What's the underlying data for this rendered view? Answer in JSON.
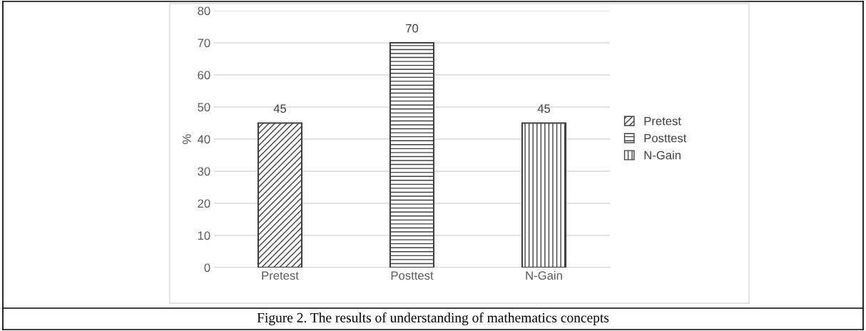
{
  "chart_data": {
    "type": "bar",
    "categories": [
      "Pretest",
      "Posttest",
      "N-Gain"
    ],
    "series": [
      {
        "name": "Pretest",
        "color": "#404040",
        "values": [
          45,
          null,
          null
        ]
      },
      {
        "name": "Posttest",
        "color": "#404040",
        "values": [
          null,
          70,
          null
        ]
      },
      {
        "name": "N-Gain",
        "color": "#404040",
        "values": [
          null,
          null,
          45
        ]
      }
    ],
    "ylabel": "%",
    "ylim": [
      0,
      80
    ],
    "yticks": [
      0,
      10,
      20,
      30,
      40,
      50,
      60,
      70,
      80
    ],
    "grid": "y",
    "legend": "right",
    "data_labels": true,
    "annotations": [
      "Figure 2. The results of understanding of mathematics concepts"
    ]
  }
}
